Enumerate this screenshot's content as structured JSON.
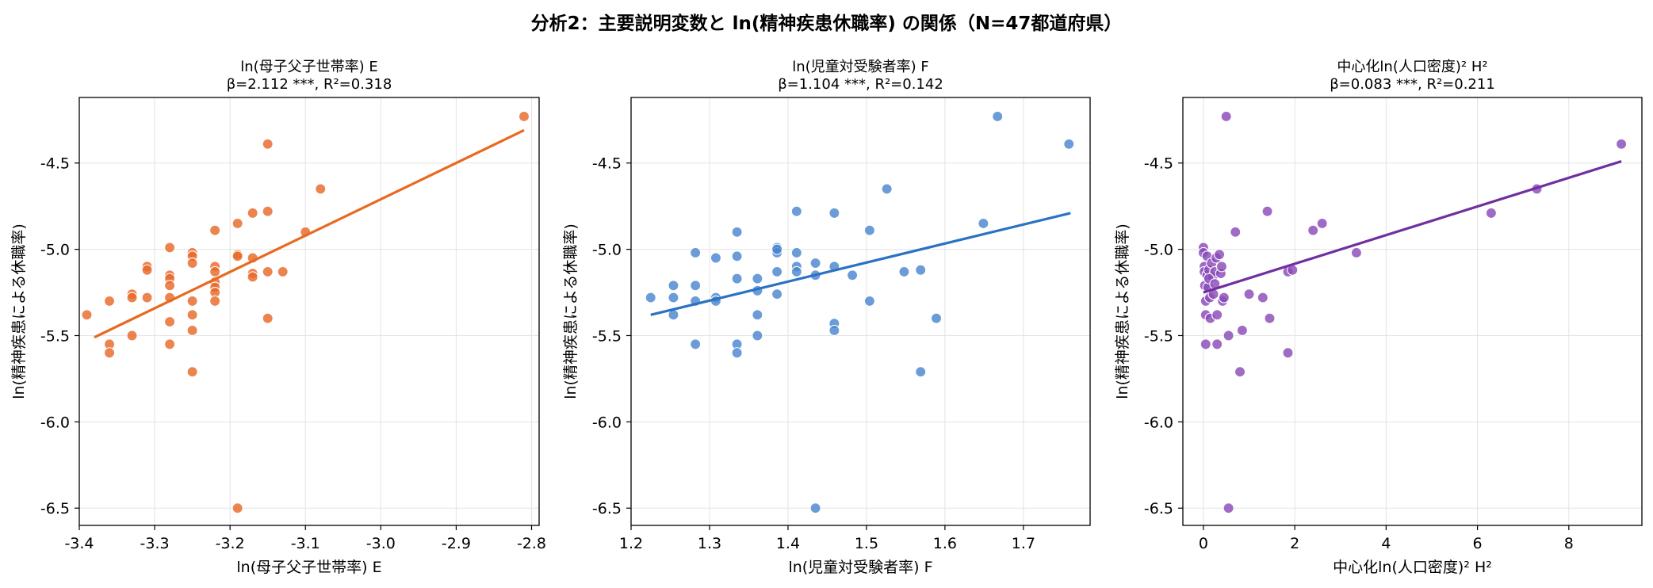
{
  "figure": {
    "suptitle": "分析2：主要説明変数と ln(精神疾患休職率) の関係（N=47都道府県）"
  },
  "chart_data": [
    {
      "type": "scatter",
      "title_line1": "ln(母子父子世帯率) E",
      "title_line2": "β=2.112 ***,  R²=0.318",
      "xlabel": "ln(母子父子世帯率) E",
      "ylabel": "ln(精神疾患による休職率)",
      "xlim": [
        -3.4,
        -2.79
      ],
      "ylim": [
        -6.6,
        -4.12
      ],
      "xticks": [
        -3.4,
        -3.3,
        -3.2,
        -3.1,
        -3.0,
        -2.9,
        -2.8
      ],
      "xtick_labels": [
        "-3.4",
        "-3.3",
        "-3.2",
        "-3.1",
        "-3.0",
        "-2.9",
        "-2.8"
      ],
      "yticks": [
        -6.5,
        -6.0,
        -5.5,
        -5.0,
        -4.5
      ],
      "ytick_labels": [
        "-6.5",
        "-6.0",
        "-5.5",
        "-5.0",
        "-4.5"
      ],
      "grid": true,
      "point_color": "#e8692a",
      "line_color": "#e8691f",
      "fit_line": {
        "x": [
          -3.38,
          -2.81
        ],
        "y": [
          -5.51,
          -4.31
        ]
      },
      "points": [
        [
          -3.39,
          -5.38
        ],
        [
          -3.36,
          -5.3
        ],
        [
          -3.36,
          -5.55
        ],
        [
          -3.36,
          -5.6
        ],
        [
          -3.33,
          -5.26
        ],
        [
          -3.33,
          -5.28
        ],
        [
          -3.33,
          -5.5
        ],
        [
          -3.31,
          -5.1
        ],
        [
          -3.31,
          -5.12
        ],
        [
          -3.31,
          -5.28
        ],
        [
          -3.28,
          -4.99
        ],
        [
          -3.28,
          -5.15
        ],
        [
          -3.28,
          -5.17
        ],
        [
          -3.28,
          -5.21
        ],
        [
          -3.28,
          -5.28
        ],
        [
          -3.28,
          -5.42
        ],
        [
          -3.28,
          -5.55
        ],
        [
          -3.25,
          -5.02
        ],
        [
          -3.25,
          -5.04
        ],
        [
          -3.25,
          -5.08
        ],
        [
          -3.25,
          -5.3
        ],
        [
          -3.25,
          -5.38
        ],
        [
          -3.25,
          -5.47
        ],
        [
          -3.25,
          -5.71
        ],
        [
          -3.22,
          -4.89
        ],
        [
          -3.22,
          -5.1
        ],
        [
          -3.22,
          -5.13
        ],
        [
          -3.22,
          -5.19
        ],
        [
          -3.22,
          -5.22
        ],
        [
          -3.22,
          -5.25
        ],
        [
          -3.22,
          -5.3
        ],
        [
          -3.19,
          -4.85
        ],
        [
          -3.19,
          -5.03
        ],
        [
          -3.19,
          -5.04
        ],
        [
          -3.19,
          -6.5
        ],
        [
          -3.17,
          -4.79
        ],
        [
          -3.17,
          -5.05
        ],
        [
          -3.17,
          -5.14
        ],
        [
          -3.17,
          -5.16
        ],
        [
          -3.15,
          -4.39
        ],
        [
          -3.15,
          -4.78
        ],
        [
          -3.15,
          -5.13
        ],
        [
          -3.15,
          -5.4
        ],
        [
          -3.13,
          -5.13
        ],
        [
          -3.1,
          -4.9
        ],
        [
          -3.08,
          -4.65
        ],
        [
          -2.81,
          -4.23
        ]
      ]
    },
    {
      "type": "scatter",
      "title_line1": "ln(児童対受験者率) F",
      "title_line2": "β=1.104 ***,  R²=0.142",
      "xlabel": "ln(児童対受験者率) F",
      "ylabel": "ln(精神疾患による休職率)",
      "xlim": [
        1.2,
        1.785
      ],
      "ylim": [
        -6.6,
        -4.12
      ],
      "xticks": [
        1.2,
        1.3,
        1.4,
        1.5,
        1.6,
        1.7
      ],
      "xtick_labels": [
        "1.2",
        "1.3",
        "1.4",
        "1.5",
        "1.6",
        "1.7"
      ],
      "yticks": [
        -6.5,
        -6.0,
        -5.5,
        -5.0,
        -4.5
      ],
      "ytick_labels": [
        "-6.5",
        "-6.0",
        "-5.5",
        "-5.0",
        "-4.5"
      ],
      "grid": true,
      "point_color": "#4a86cf",
      "line_color": "#2a72c2",
      "fit_line": {
        "x": [
          1.225,
          1.76
        ],
        "y": [
          -5.38,
          -4.79
        ]
      },
      "points": [
        [
          1.225,
          -5.28
        ],
        [
          1.254,
          -5.21
        ],
        [
          1.254,
          -5.28
        ],
        [
          1.254,
          -5.38
        ],
        [
          1.282,
          -5.02
        ],
        [
          1.282,
          -5.21
        ],
        [
          1.282,
          -5.3
        ],
        [
          1.282,
          -5.55
        ],
        [
          1.308,
          -5.05
        ],
        [
          1.308,
          -5.28
        ],
        [
          1.308,
          -5.3
        ],
        [
          1.335,
          -4.9
        ],
        [
          1.335,
          -5.04
        ],
        [
          1.335,
          -5.17
        ],
        [
          1.335,
          -5.55
        ],
        [
          1.335,
          -5.6
        ],
        [
          1.361,
          -5.17
        ],
        [
          1.361,
          -5.24
        ],
        [
          1.361,
          -5.38
        ],
        [
          1.361,
          -5.5
        ],
        [
          1.386,
          -4.99
        ],
        [
          1.386,
          -5.02
        ],
        [
          1.386,
          -5.13
        ],
        [
          1.386,
          -5.26
        ],
        [
          1.411,
          -4.78
        ],
        [
          1.411,
          -5.02
        ],
        [
          1.411,
          -5.1
        ],
        [
          1.411,
          -5.13
        ],
        [
          1.435,
          -5.08
        ],
        [
          1.435,
          -5.15
        ],
        [
          1.435,
          -6.5
        ],
        [
          1.459,
          -4.79
        ],
        [
          1.459,
          -5.1
        ],
        [
          1.459,
          -5.43
        ],
        [
          1.459,
          -5.47
        ],
        [
          1.482,
          -5.15
        ],
        [
          1.504,
          -4.89
        ],
        [
          1.504,
          -5.3
        ],
        [
          1.526,
          -4.65
        ],
        [
          1.548,
          -5.13
        ],
        [
          1.569,
          -5.12
        ],
        [
          1.569,
          -5.71
        ],
        [
          1.589,
          -5.4
        ],
        [
          1.649,
          -4.85
        ],
        [
          1.667,
          -4.23
        ],
        [
          1.758,
          -4.39
        ],
        [
          1.386,
          -5.0
        ]
      ]
    },
    {
      "type": "scatter",
      "title_line1": "中心化ln(人口密度)² H²",
      "title_line2": "β=0.083 ***,  R²=0.211",
      "xlabel": "中心化ln(人口密度)² H²",
      "ylabel": "ln(精神疾患による休職率)",
      "xlim": [
        -0.45,
        9.6
      ],
      "ylim": [
        -6.6,
        -4.12
      ],
      "xticks": [
        0,
        2,
        4,
        6,
        8
      ],
      "xtick_labels": [
        "0",
        "2",
        "4",
        "6",
        "8"
      ],
      "yticks": [
        -6.5,
        -6.0,
        -5.5,
        -5.0,
        -4.5
      ],
      "ytick_labels": [
        "-6.5",
        "-6.0",
        "-5.5",
        "-5.0",
        "-4.5"
      ],
      "grid": true,
      "point_color": "#8a4bb8",
      "line_color": "#7030a0",
      "fit_line": {
        "x": [
          0.0,
          9.15
        ],
        "y": [
          -5.25,
          -4.49
        ]
      },
      "points": [
        [
          0.0,
          -4.99
        ],
        [
          0.0,
          -5.02
        ],
        [
          0.02,
          -5.1
        ],
        [
          0.02,
          -5.13
        ],
        [
          0.03,
          -5.21
        ],
        [
          0.05,
          -5.3
        ],
        [
          0.05,
          -5.38
        ],
        [
          0.05,
          -5.55
        ],
        [
          0.08,
          -5.04
        ],
        [
          0.08,
          -5.15
        ],
        [
          0.1,
          -5.22
        ],
        [
          0.12,
          -5.12
        ],
        [
          0.14,
          -5.28
        ],
        [
          0.15,
          -5.4
        ],
        [
          0.18,
          -5.08
        ],
        [
          0.2,
          -5.16
        ],
        [
          0.22,
          -5.26
        ],
        [
          0.25,
          -5.13
        ],
        [
          0.28,
          -5.05
        ],
        [
          0.3,
          -5.38
        ],
        [
          0.3,
          -5.55
        ],
        [
          0.35,
          -5.03
        ],
        [
          0.38,
          -5.14
        ],
        [
          0.4,
          -5.1
        ],
        [
          0.42,
          -5.3
        ],
        [
          0.45,
          -5.28
        ],
        [
          0.5,
          -4.23
        ],
        [
          0.55,
          -5.5
        ],
        [
          0.55,
          -6.5
        ],
        [
          0.7,
          -4.9
        ],
        [
          0.8,
          -5.71
        ],
        [
          0.85,
          -5.47
        ],
        [
          1.0,
          -5.26
        ],
        [
          1.3,
          -5.28
        ],
        [
          1.4,
          -4.78
        ],
        [
          1.45,
          -5.4
        ],
        [
          1.85,
          -5.13
        ],
        [
          1.85,
          -5.6
        ],
        [
          1.95,
          -5.12
        ],
        [
          2.4,
          -4.89
        ],
        [
          2.6,
          -4.85
        ],
        [
          3.35,
          -5.02
        ],
        [
          6.3,
          -4.79
        ],
        [
          7.3,
          -4.65
        ],
        [
          9.15,
          -4.39
        ],
        [
          0.12,
          -5.17
        ],
        [
          0.25,
          -5.2
        ]
      ]
    }
  ]
}
